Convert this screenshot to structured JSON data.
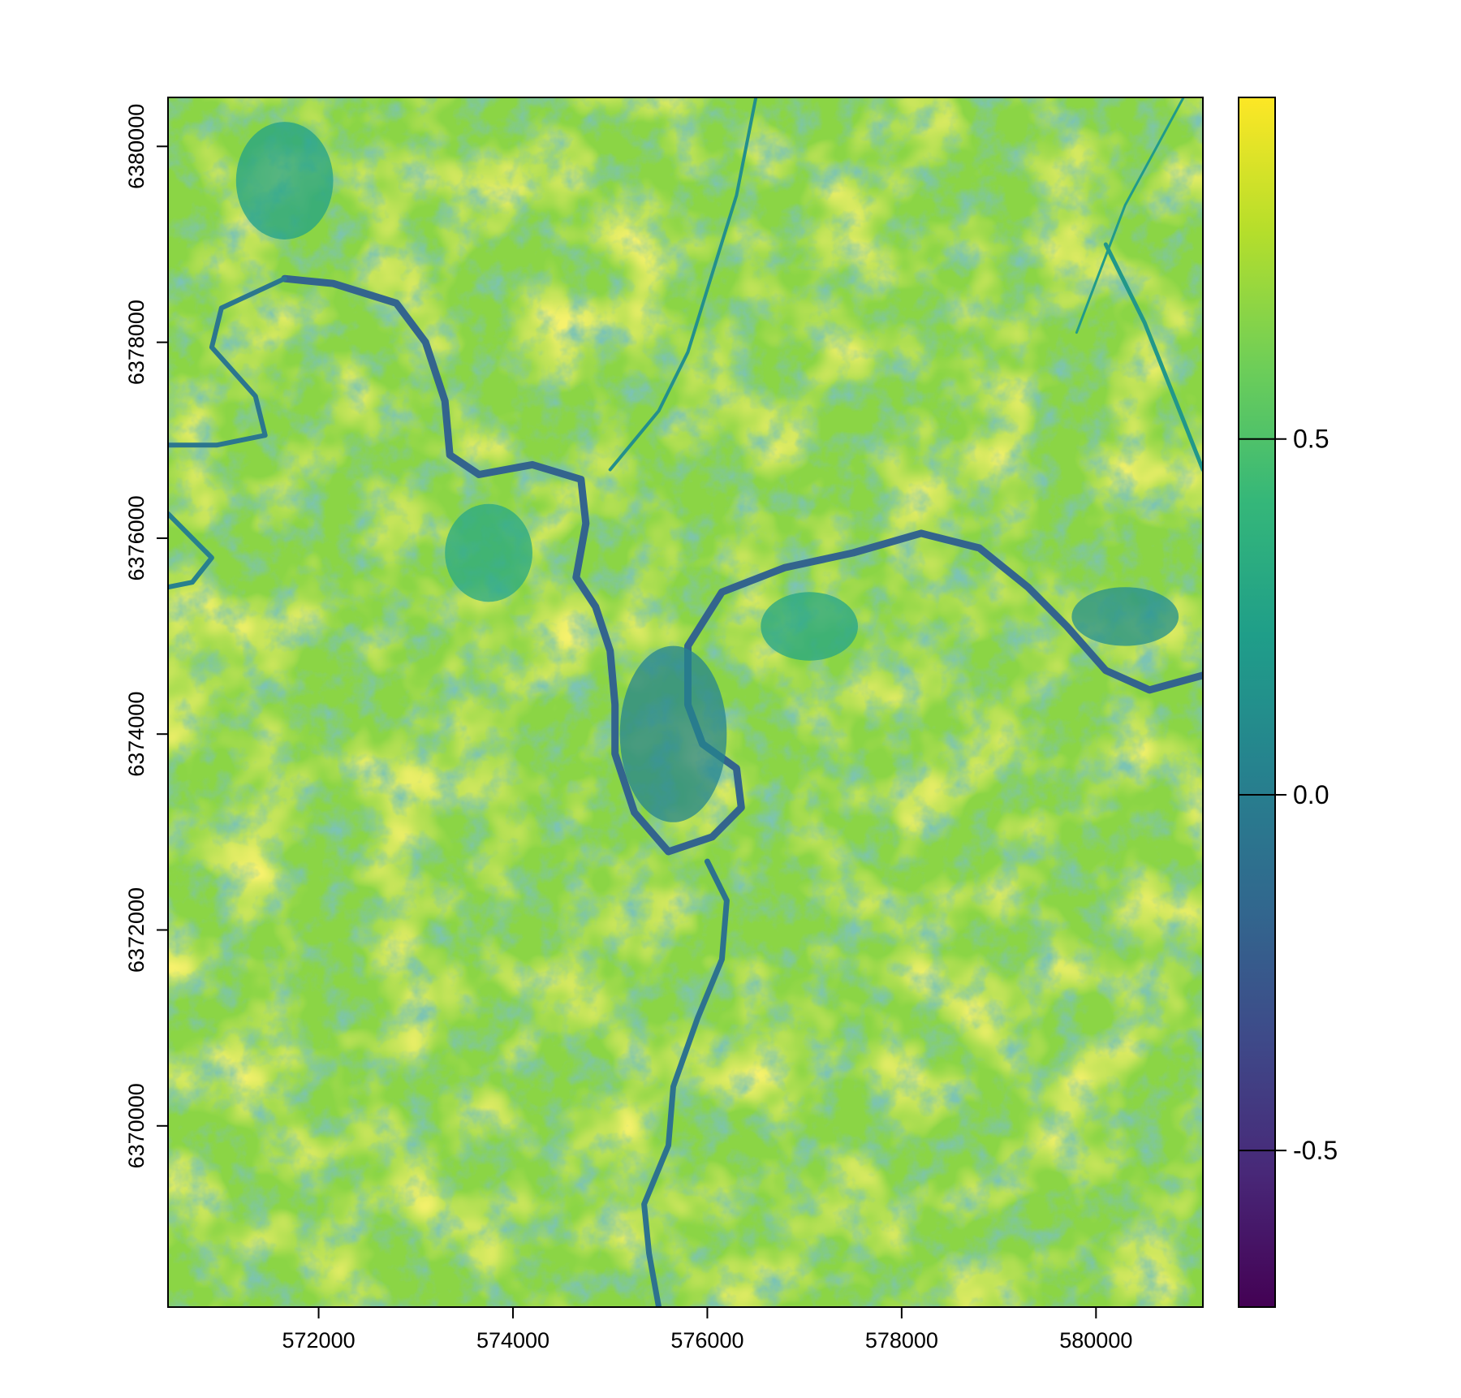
{
  "chart_data": {
    "type": "heatmap",
    "title": "",
    "xlabel": "",
    "ylabel": "",
    "xlim": [
      570450,
      581100
    ],
    "ylim": [
      6368150,
      6380500
    ],
    "x_ticks": [
      {
        "value": 572000,
        "label": "572000"
      },
      {
        "value": 574000,
        "label": "574000"
      },
      {
        "value": 576000,
        "label": "576000"
      },
      {
        "value": 578000,
        "label": "578000"
      },
      {
        "value": 580000,
        "label": "580000"
      }
    ],
    "y_ticks": [
      {
        "value": 6370000,
        "label": "6370000"
      },
      {
        "value": 6372000,
        "label": "6372000"
      },
      {
        "value": 6374000,
        "label": "6374000"
      },
      {
        "value": 6376000,
        "label": "6376000"
      },
      {
        "value": 6378000,
        "label": "6378000"
      },
      {
        "value": 6380000,
        "label": "6380000"
      }
    ],
    "colorbar": {
      "range": [
        -0.72,
        0.98
      ],
      "colormap": "viridis",
      "colors": [
        "#440154",
        "#482878",
        "#3e4a89",
        "#31688e",
        "#26828e",
        "#1f9e89",
        "#35b779",
        "#6ece58",
        "#b5de2b",
        "#fde725"
      ],
      "ticks": [
        {
          "value": -0.5,
          "label": "-0.5"
        },
        {
          "value": 0.0,
          "label": "0.0"
        },
        {
          "value": 0.5,
          "label": "0.5"
        }
      ]
    },
    "background_value": 0.68,
    "features": {
      "river_main": {
        "value": -0.18,
        "points": [
          [
            571650,
            6378650
          ],
          [
            572150,
            6378600
          ],
          [
            572800,
            6378400
          ],
          [
            573100,
            6378000
          ],
          [
            573300,
            6377400
          ],
          [
            573350,
            6376850
          ],
          [
            573650,
            6376650
          ],
          [
            574200,
            6376750
          ],
          [
            574700,
            6376600
          ],
          [
            574750,
            6376150
          ],
          [
            574650,
            6375600
          ],
          [
            574850,
            6375300
          ],
          [
            575000,
            6374850
          ],
          [
            575050,
            6374300
          ],
          [
            575050,
            6373800
          ],
          [
            575250,
            6373200
          ],
          [
            575600,
            6372800
          ],
          [
            576050,
            6372950
          ],
          [
            576350,
            6373250
          ],
          [
            576300,
            6373650
          ],
          [
            575950,
            6373900
          ],
          [
            575800,
            6374300
          ],
          [
            575800,
            6374900
          ],
          [
            576150,
            6375450
          ],
          [
            576800,
            6375700
          ],
          [
            577500,
            6375850
          ],
          [
            578200,
            6376050
          ],
          [
            578800,
            6375900
          ],
          [
            579300,
            6375500
          ],
          [
            579700,
            6375100
          ],
          [
            580100,
            6374650
          ],
          [
            580550,
            6374450
          ],
          [
            581100,
            6374600
          ]
        ]
      },
      "river_west": {
        "value": -0.05,
        "points": [
          [
            571650,
            6378650
          ],
          [
            571000,
            6378350
          ],
          [
            570900,
            6377950
          ],
          [
            571350,
            6377450
          ],
          [
            571450,
            6377050
          ],
          [
            570950,
            6376950
          ],
          [
            570450,
            6376950
          ]
        ]
      },
      "river_west2": {
        "value": 0.02,
        "points": [
          [
            570450,
            6376250
          ],
          [
            570900,
            6375800
          ],
          [
            570700,
            6375550
          ],
          [
            570450,
            6375500
          ]
        ]
      },
      "stream_south": {
        "value": -0.08,
        "points": [
          [
            576000,
            6372700
          ],
          [
            576200,
            6372300
          ],
          [
            576150,
            6371700
          ],
          [
            575900,
            6371100
          ],
          [
            575650,
            6370400
          ],
          [
            575600,
            6369800
          ],
          [
            575350,
            6369200
          ],
          [
            575400,
            6368700
          ],
          [
            575500,
            6368150
          ]
        ]
      },
      "stream_north": {
        "value": 0.12,
        "points": [
          [
            575000,
            6376700
          ],
          [
            575500,
            6377300
          ],
          [
            575800,
            6377900
          ],
          [
            576050,
            6378700
          ],
          [
            576300,
            6379500
          ],
          [
            576500,
            6380500
          ]
        ]
      },
      "stream_east": {
        "value": 0.18,
        "points": [
          [
            580100,
            6379000
          ],
          [
            580500,
            6378200
          ],
          [
            580900,
            6377200
          ],
          [
            581100,
            6376700
          ]
        ]
      },
      "stream_ne": {
        "value": 0.2,
        "points": [
          [
            579800,
            6378100
          ],
          [
            580300,
            6379400
          ],
          [
            580900,
            6380500
          ]
        ]
      },
      "town_center": {
        "value": 0.05,
        "cx": 575650,
        "cy": 6374000,
        "rx": 550,
        "ry": 900
      },
      "town_west": {
        "value": 0.3,
        "cx": 573750,
        "cy": 6375850,
        "rx": 450,
        "ry": 500
      },
      "town_ne": {
        "value": 0.28,
        "cx": 577050,
        "cy": 6375100,
        "rx": 500,
        "ry": 350
      },
      "town_nw": {
        "value": 0.25,
        "cx": 571650,
        "cy": 6379650,
        "rx": 500,
        "ry": 600
      },
      "fields_east": {
        "value": 0.12,
        "cx": 580300,
        "cy": 6375200,
        "rx": 550,
        "ry": 300
      }
    }
  }
}
